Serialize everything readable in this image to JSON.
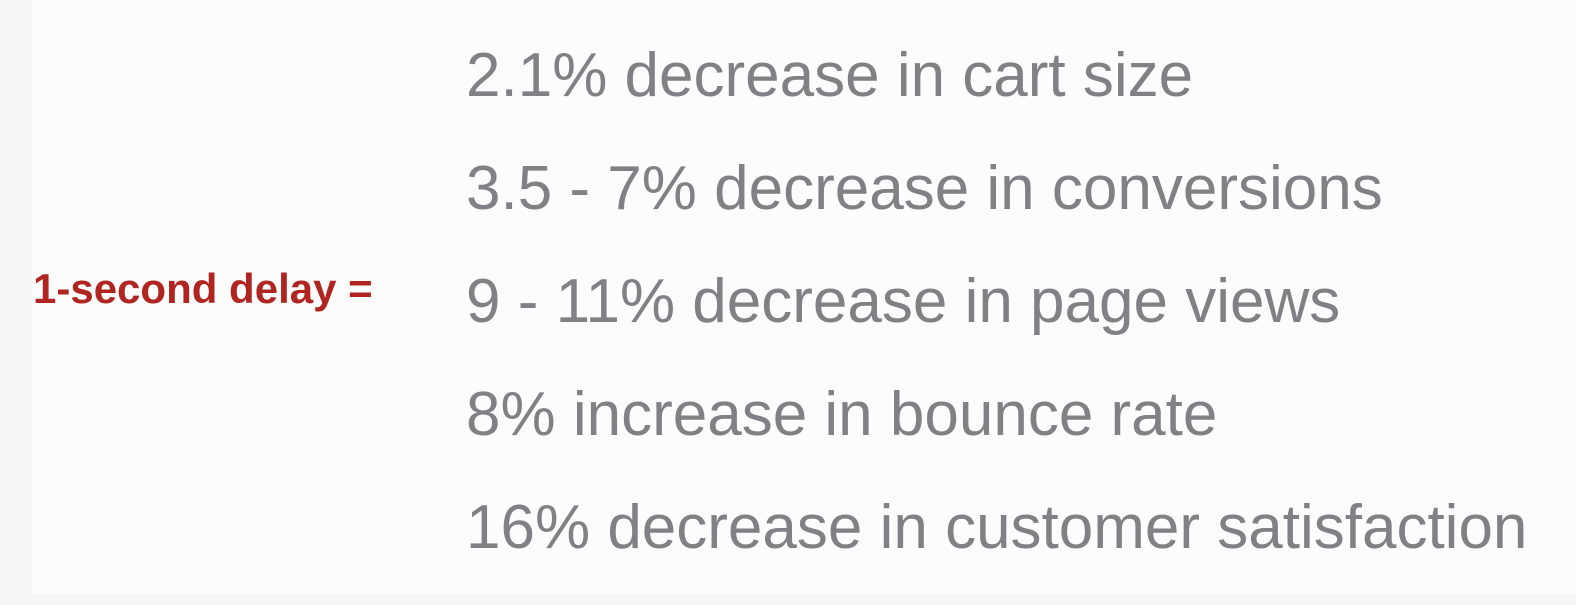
{
  "colors": {
    "accent": "#b02520",
    "text": "#808085",
    "background": "#fdfcfd"
  },
  "label": "1-second delay =",
  "stats": [
    "2.1% decrease in cart size",
    "3.5 - 7% decrease in conversions",
    "9 - 11% decrease in page views",
    "8% increase in bounce rate",
    "16% decrease in customer satisfaction"
  ]
}
